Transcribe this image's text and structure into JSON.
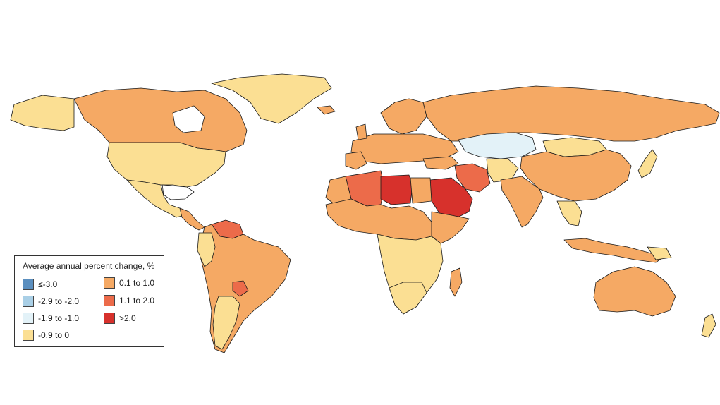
{
  "legend": {
    "title": "Average annual percent change, %",
    "items": [
      {
        "label": "≤-3.0",
        "color": "#5b8fbf"
      },
      {
        "label": "-2.9 to -2.0",
        "color": "#a9cfe6"
      },
      {
        "label": "-1.9 to -1.0",
        "color": "#e3f2f8"
      },
      {
        "label": "-0.9 to 0",
        "color": "#fbdf93"
      },
      {
        "label": "0.1 to 1.0",
        "color": "#f5a964"
      },
      {
        "label": "1.1 to 2.0",
        "color": "#ec6b4a"
      },
      {
        "label": ">2.0",
        "color": "#d7312c"
      }
    ]
  },
  "colors": {
    "ocean": "#ffffff",
    "border": "#1a1a1a",
    "no_data": "#ffffff"
  }
}
